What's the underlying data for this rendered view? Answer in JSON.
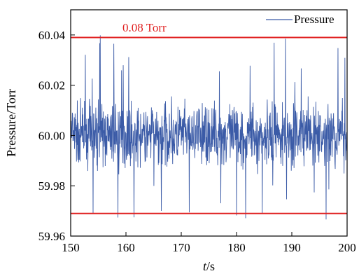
{
  "chart_data": {
    "type": "line",
    "xlabel_italic": "t",
    "xlabel_unit": "/s",
    "ylabel": "Pressure/Torr",
    "xlim": [
      150,
      200
    ],
    "ylim": [
      59.96,
      60.05
    ],
    "x_ticks": [
      "150",
      "160",
      "170",
      "180",
      "190",
      "200"
    ],
    "y_ticks": [
      "59.96",
      "59.98",
      "60.00",
      "60.02",
      "60.04"
    ],
    "grid": false,
    "legend_position": "top-right",
    "series": [
      {
        "name": "Pressure",
        "color": "#3b5ba7",
        "x_start": 150,
        "x_end": 200,
        "mean": 60.0,
        "min": 59.966,
        "max": 60.04
      }
    ],
    "reference_lines": [
      {
        "y": 60.039,
        "color": "#e02020"
      },
      {
        "y": 59.969,
        "color": "#e02020"
      }
    ],
    "annotation": {
      "text": "0.08 Torr",
      "color": "#e02020"
    }
  }
}
